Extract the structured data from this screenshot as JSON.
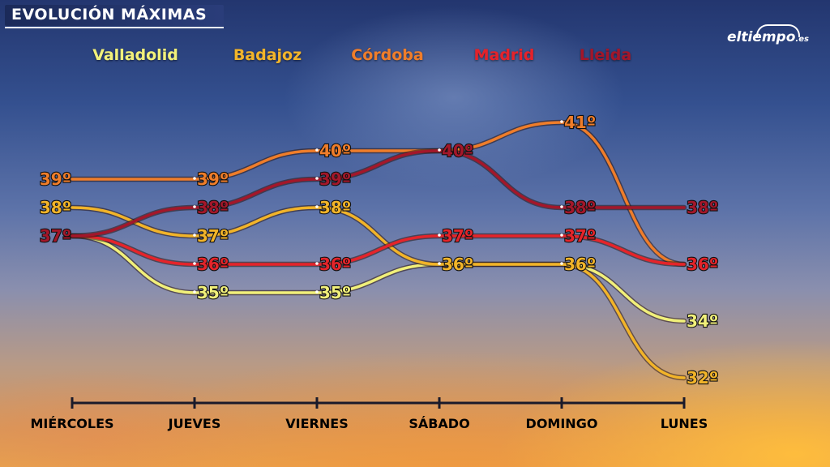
{
  "header": {
    "title": "EVOLUCIÓN MÁXIMAS"
  },
  "logo": {
    "name": "eltiempo",
    "suffix": ".es"
  },
  "chart_data": {
    "type": "line",
    "title": "EVOLUCIÓN MÁXIMAS",
    "categories": [
      "MIÉRCOLES",
      "JUEVES",
      "VIERNES",
      "SÁBADO",
      "DOMINGO",
      "LUNES"
    ],
    "unit_suffix": "º",
    "ylim": [
      31,
      42
    ],
    "grid": false,
    "legend_position": "top",
    "series": [
      {
        "name": "Valladolid",
        "color": "#f1f07a",
        "values": [
          37,
          35,
          35,
          36,
          36,
          34
        ]
      },
      {
        "name": "Badajoz",
        "color": "#f2b429",
        "values": [
          38,
          37,
          38,
          36,
          36,
          32
        ]
      },
      {
        "name": "Córdoba",
        "color": "#ef7d2a",
        "values": [
          39,
          39,
          40,
          40,
          41,
          36
        ]
      },
      {
        "name": "Madrid",
        "color": "#e5242a",
        "values": [
          37,
          36,
          36,
          37,
          37,
          36
        ]
      },
      {
        "name": "Lleida",
        "color": "#a3172a",
        "values": [
          37,
          38,
          39,
          40,
          38,
          38
        ]
      }
    ]
  }
}
